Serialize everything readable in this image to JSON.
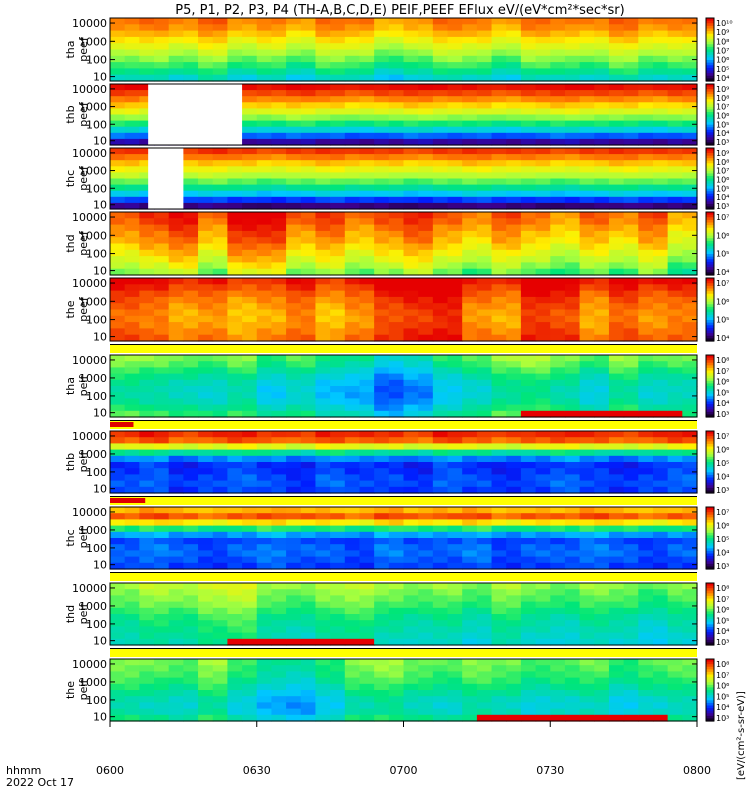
{
  "title": "P5, P1, P2, P3, P4 (TH-A,B,C,D,E) PEIF,PEEF EFlux eV/(eV*cm²*sec*sr)",
  "footer": {
    "time_label": "hhmm",
    "date_label": "2022 Oct 17"
  },
  "colorbar_unit_label": "[eV/(cm²-s-sr-eV)]",
  "chart_data": {
    "type": "heatmap",
    "x_ticks": [
      "0600",
      "0630",
      "0700",
      "0730",
      "0800"
    ],
    "x_range": [
      "06:00",
      "08:00"
    ],
    "y_scale": "log",
    "y_ticks": [
      "10",
      "100",
      "1000",
      "10000"
    ],
    "panels": [
      {
        "probe": "tha",
        "species": "peef",
        "label_top": "tha",
        "label_bottom": "peef",
        "cbar": [
          "10⁴",
          "10⁵",
          "10⁶",
          "10⁷",
          "10⁸",
          "10⁹",
          "10¹⁰"
        ],
        "cbar_range": [
          4,
          10
        ],
        "profile": [
          9.2,
          9.0,
          8.6,
          8.2,
          7.8,
          7.4,
          7.0,
          6.5
        ],
        "time_var": [
          0.0,
          0.1,
          -0.1,
          0.2,
          -0.2,
          0.0,
          -0.3,
          0.1,
          0.0,
          -0.4,
          -0.2,
          0.1,
          0.0,
          -0.3,
          0.1,
          0.0,
          -0.1,
          0.2,
          -0.1,
          0.0
        ],
        "gap": null
      },
      {
        "probe": "thb",
        "species": "peef",
        "label_top": "thb",
        "label_bottom": "peef",
        "cbar": [
          "10³",
          "10⁴",
          "10⁵",
          "10⁶",
          "10⁷",
          "10⁸",
          "10⁹"
        ],
        "cbar_range": [
          3,
          9
        ],
        "profile": [
          8.9,
          8.4,
          7.8,
          7.2,
          6.5,
          5.8,
          4.8,
          3.6
        ],
        "time_var": [
          0.1,
          0.0,
          0.0,
          0.0,
          0.0,
          0.0,
          0.1,
          0.0,
          -0.1,
          0.0,
          0.1,
          0.0,
          0.0,
          -0.1,
          0.0,
          0.1,
          0.0,
          0.0,
          -0.1,
          0.0
        ],
        "gap": [
          0.065,
          0.225
        ]
      },
      {
        "probe": "thc",
        "species": "peef",
        "label_top": "thc",
        "label_bottom": "peef",
        "cbar": [
          "10³",
          "10⁴",
          "10⁵",
          "10⁶",
          "10⁷",
          "10⁸",
          "10⁹"
        ],
        "cbar_range": [
          3,
          9
        ],
        "profile": [
          8.6,
          8.0,
          7.4,
          6.9,
          6.3,
          5.6,
          4.6,
          3.4
        ],
        "time_var": [
          0.1,
          0.0,
          0.0,
          0.1,
          0.0,
          -0.1,
          0.0,
          0.1,
          0.0,
          0.0,
          -0.1,
          0.0,
          0.1,
          0.0,
          0.0,
          -0.1,
          0.0,
          0.1,
          0.0,
          0.0
        ],
        "gap": [
          0.065,
          0.125
        ]
      },
      {
        "probe": "thd",
        "species": "peef",
        "label_top": "thd",
        "label_bottom": "peef",
        "cbar": [
          "10⁴",
          "10⁵",
          "10⁶",
          "10⁷"
        ],
        "cbar_range": [
          3.5,
          7.5
        ],
        "profile": [
          6.9,
          6.8,
          6.6,
          6.5,
          6.3,
          6.1,
          5.9,
          5.6
        ],
        "time_var": [
          0.2,
          0.4,
          0.6,
          0.1,
          0.7,
          0.7,
          0.2,
          0.4,
          0.1,
          0.3,
          0.5,
          0.2,
          0.0,
          0.3,
          0.1,
          -0.1,
          0.2,
          0.0,
          0.3,
          -0.2
        ],
        "gap": null
      },
      {
        "probe": "the",
        "species": "peef",
        "label_top": "the",
        "label_bottom": "peef",
        "cbar": [
          "10⁴",
          "10⁵",
          "10⁶",
          "10⁷"
        ],
        "cbar_range": [
          3.5,
          7.5
        ],
        "profile": [
          7.3,
          7.1,
          6.9,
          6.8,
          6.7,
          6.7,
          6.8,
          6.9
        ],
        "time_var": [
          0.3,
          0.2,
          0.0,
          0.1,
          -0.1,
          0.0,
          0.2,
          -0.1,
          0.1,
          0.4,
          0.5,
          0.6,
          0.1,
          0.0,
          0.5,
          0.4,
          0.0,
          0.3,
          0.1,
          0.2
        ],
        "gap": null
      },
      {
        "probe": "tha",
        "species": "peif",
        "label_top": "tha",
        "label_bottom": "peif",
        "cbar": [
          "10³",
          "10⁴",
          "10⁵",
          "10⁶",
          "10⁷",
          "10⁸"
        ],
        "cbar_range": [
          3,
          8
        ],
        "profile": [
          5.8,
          5.6,
          5.3,
          5.1,
          5.0,
          5.0,
          5.2,
          5.5
        ],
        "time_var": [
          0.3,
          0.2,
          0.1,
          0.0,
          0.2,
          -0.2,
          0.0,
          -0.3,
          -0.4,
          -0.8,
          -0.6,
          -0.2,
          0.0,
          0.3,
          0.4,
          0.2,
          -0.1,
          0.3,
          0.0,
          0.1
        ],
        "gap": null,
        "hot_bottom": [
          0.7,
          0.95
        ]
      },
      {
        "probe": "thb",
        "species": "peif",
        "label_top": "thb",
        "label_bottom": "peif",
        "cbar": [
          "10³",
          "10⁴",
          "10⁵",
          "10⁶",
          "10⁷"
        ],
        "cbar_range": [
          3,
          7
        ],
        "profile": [
          6.8,
          6.5,
          5.2,
          4.2,
          3.8,
          3.9,
          4.0,
          3.9
        ],
        "time_var": [
          0.0,
          0.1,
          -0.1,
          0.0,
          0.1,
          0.0,
          -0.1,
          0.1,
          0.0,
          0.0,
          -0.1,
          0.1,
          0.0,
          -0.1,
          0.0,
          0.1,
          0.0,
          -0.1,
          0.0,
          0.1
        ],
        "gap": null
      },
      {
        "probe": "thc",
        "species": "peif",
        "label_top": "thc",
        "label_bottom": "peif",
        "cbar": [
          "10³",
          "10⁴",
          "10⁵",
          "10⁶",
          "10⁷"
        ],
        "cbar_range": [
          3,
          7
        ],
        "profile": [
          6.2,
          6.7,
          5.4,
          4.3,
          3.9,
          4.1,
          4.0,
          3.9
        ],
        "time_var": [
          0.0,
          0.1,
          0.0,
          -0.1,
          0.0,
          0.1,
          0.0,
          0.0,
          -0.1,
          0.1,
          0.0,
          0.0,
          0.1,
          -0.1,
          0.0,
          0.0,
          0.1,
          0.0,
          -0.1,
          0.0
        ],
        "gap": null
      },
      {
        "probe": "thd",
        "species": "peif",
        "label_top": "thd",
        "label_bottom": "peif",
        "cbar": [
          "10³",
          "10⁴",
          "10⁵",
          "10⁶",
          "10⁷",
          "10⁸"
        ],
        "cbar_range": [
          3,
          8
        ],
        "profile": [
          6.0,
          5.8,
          5.7,
          5.5,
          5.3,
          5.2,
          5.1,
          5.0
        ],
        "time_var": [
          0.1,
          0.3,
          0.2,
          0.4,
          0.5,
          0.1,
          0.0,
          0.2,
          0.3,
          0.1,
          0.0,
          0.1,
          -0.1,
          0.2,
          0.0,
          -0.1,
          0.1,
          0.0,
          -0.2,
          0.0
        ],
        "gap": null,
        "hot_bottom": [
          0.18,
          0.44
        ]
      },
      {
        "probe": "the",
        "species": "peif",
        "label_top": "the",
        "label_bottom": "peif",
        "cbar": [
          "10³",
          "10⁴",
          "10⁵",
          "10⁶",
          "10⁷",
          "10⁸"
        ],
        "cbar_range": [
          3,
          8
        ],
        "profile": [
          5.8,
          5.7,
          5.6,
          5.4,
          5.2,
          5.0,
          5.0,
          5.3
        ],
        "time_var": [
          0.2,
          0.1,
          0.0,
          0.3,
          -0.1,
          -0.4,
          -0.5,
          -0.2,
          0.2,
          0.3,
          0.1,
          0.0,
          0.2,
          0.1,
          -0.1,
          0.0,
          0.1,
          -0.2,
          0.0,
          0.1
        ],
        "gap": null,
        "hot_bottom": [
          0.62,
          0.94
        ]
      }
    ]
  }
}
